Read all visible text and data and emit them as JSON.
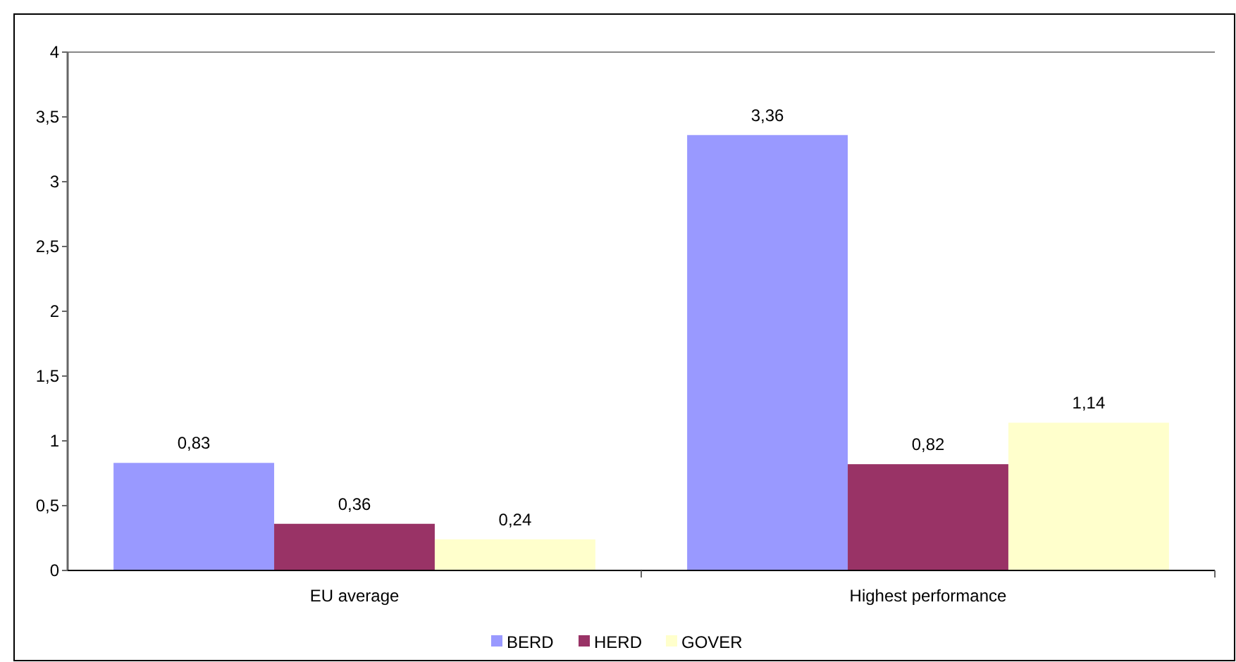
{
  "chart_data": {
    "type": "bar",
    "categories": [
      "EU average",
      "Highest performance"
    ],
    "series": [
      {
        "name": "BERD",
        "color": "#9999ff",
        "values": [
          0.83,
          3.36
        ],
        "value_labels": [
          "0,83",
          "3,36"
        ]
      },
      {
        "name": "HERD",
        "color": "#993366",
        "values": [
          0.36,
          0.82
        ],
        "value_labels": [
          "0,36",
          "0,82"
        ]
      },
      {
        "name": "GOVER",
        "color": "#ffffcc",
        "values": [
          0.24,
          1.14
        ],
        "value_labels": [
          "0,24",
          "1,14"
        ]
      }
    ],
    "ylim": [
      0,
      4
    ],
    "yticks": [
      0,
      {
        "value": 0.5,
        "label": "0,5"
      },
      1,
      {
        "value": 1.5,
        "label": "1,5"
      },
      2,
      {
        "value": 2.5,
        "label": "2,5"
      },
      3,
      {
        "value": 3.5,
        "label": "3,5"
      },
      4
    ],
    "grid": false,
    "legend": "bottom"
  }
}
